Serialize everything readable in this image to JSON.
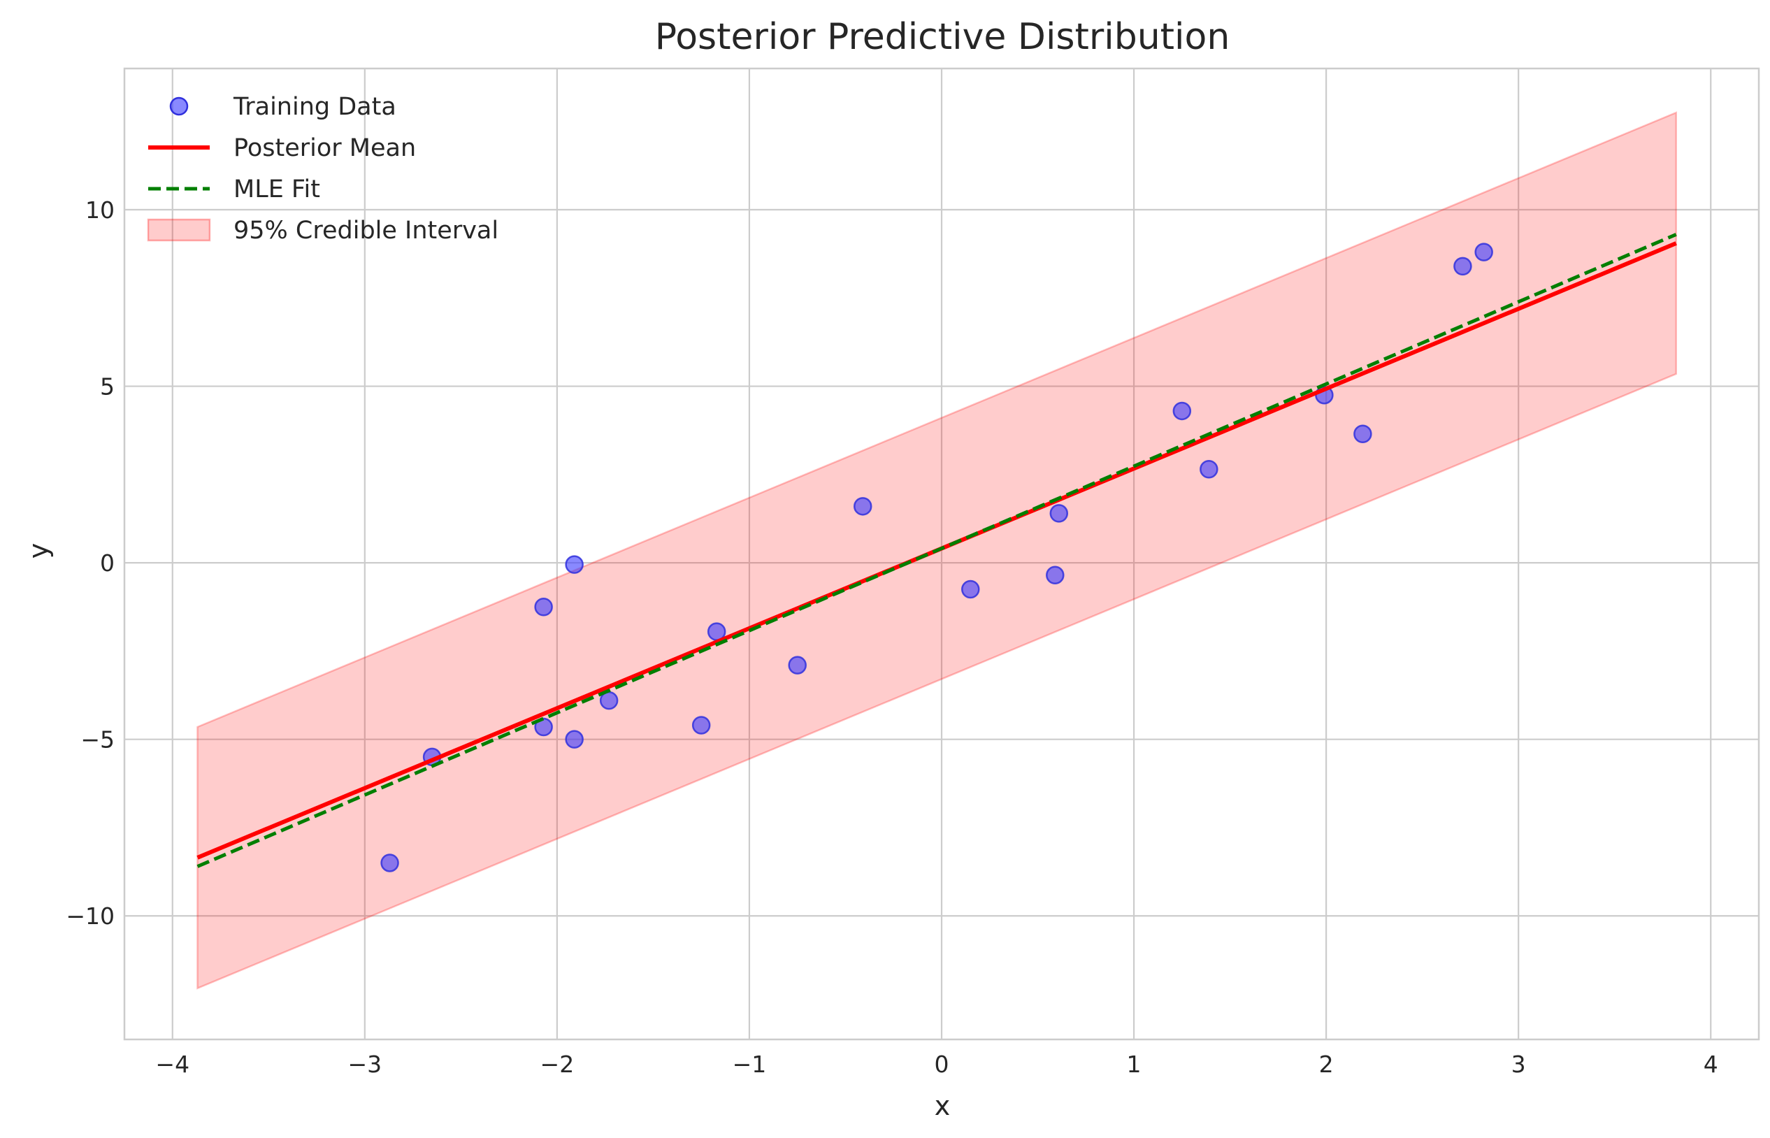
{
  "chart_data": {
    "type": "scatter",
    "title": "Posterior Predictive Distribution",
    "xlabel": "x",
    "ylabel": "y",
    "xlim": [
      -4.25,
      4.25
    ],
    "ylim": [
      -13.5,
      14.0
    ],
    "grid": true,
    "legend_position": "top-left",
    "x_ticks": [
      -4,
      -3,
      -2,
      -1,
      0,
      1,
      2,
      3,
      4
    ],
    "x_tick_labels": [
      "−4",
      "−3",
      "−2",
      "−1",
      "0",
      "1",
      "2",
      "3",
      "4"
    ],
    "y_ticks": [
      -10,
      -5,
      0,
      5,
      10
    ],
    "y_tick_labels": [
      "−10",
      "−5",
      "0",
      "5",
      "10"
    ],
    "series": [
      {
        "name": "Training Data",
        "kind": "scatter",
        "color": "#3b3bff",
        "edge_color": "#3030dd",
        "points": [
          [
            -2.87,
            -8.5
          ],
          [
            -2.65,
            -5.5
          ],
          [
            -2.07,
            -1.25
          ],
          [
            -2.07,
            -4.65
          ],
          [
            -1.91,
            -0.05
          ],
          [
            -1.91,
            -5.0
          ],
          [
            -1.73,
            -3.9
          ],
          [
            -1.25,
            -4.6
          ],
          [
            -1.17,
            -1.95
          ],
          [
            -0.75,
            -2.9
          ],
          [
            -0.41,
            1.6
          ],
          [
            0.15,
            -0.75
          ],
          [
            0.59,
            -0.35
          ],
          [
            0.61,
            1.4
          ],
          [
            1.25,
            4.3
          ],
          [
            1.39,
            2.65
          ],
          [
            1.99,
            4.75
          ],
          [
            2.19,
            3.65
          ],
          [
            2.71,
            8.4
          ],
          [
            2.82,
            8.8
          ]
        ]
      },
      {
        "name": "Posterior Mean",
        "kind": "line",
        "color": "#ff0000",
        "dash": "solid",
        "points": [
          [
            -3.87,
            -8.35
          ],
          [
            3.82,
            9.05
          ]
        ]
      },
      {
        "name": "MLE Fit",
        "kind": "line",
        "color": "#007f00",
        "dash": "dashed",
        "points": [
          [
            -3.87,
            -8.6
          ],
          [
            3.82,
            9.3
          ]
        ]
      },
      {
        "name": "95% Credible Interval",
        "kind": "band",
        "color": "#ff0000",
        "x": [
          -3.87,
          3.82
        ],
        "lower": [
          -12.05,
          5.35
        ],
        "upper": [
          -4.65,
          12.75
        ]
      }
    ]
  }
}
